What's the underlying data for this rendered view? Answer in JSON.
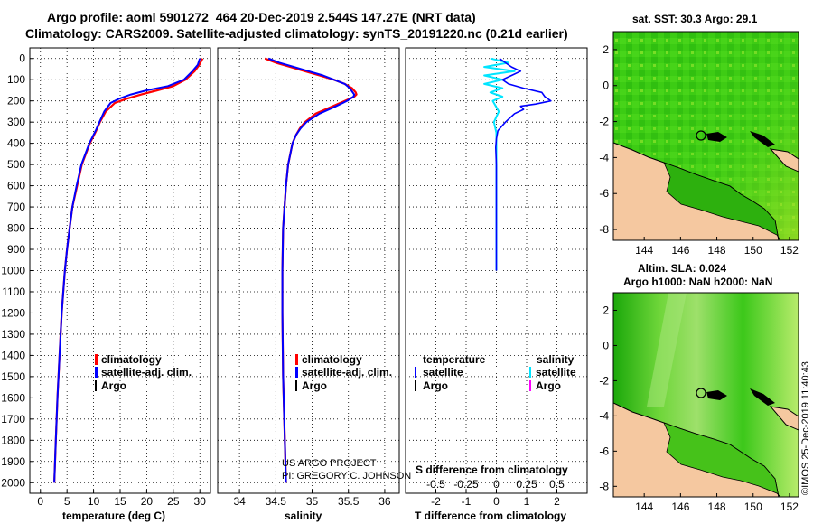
{
  "title": {
    "line1": "Argo profile: aoml 5901272_464 20-Dec-2019 2.544S 147.27E (NRT data)",
    "line2": "Climatology: CARS2009. Satellite-adjusted climatology: synTS_20191220.nc (0.21d earlier)"
  },
  "depth_axis": {
    "ticks": [
      "0",
      "100",
      "200",
      "300",
      "400",
      "500",
      "600",
      "700",
      "800",
      "900",
      "1000",
      "1100",
      "1200",
      "1300",
      "1400",
      "1500",
      "1600",
      "1700",
      "1800",
      "1900",
      "2000"
    ]
  },
  "credits": {
    "project": "US ARGO PROJECT",
    "pi": "PI: GREGORY C. JOHNSON",
    "stamp": "©IMOS 25-Dec-2019 11:40:43"
  },
  "colors": {
    "climatology": "#ff0000",
    "satellite": "#0000ff",
    "argo": "#000000",
    "sal_satellite": "#00e5ff",
    "sal_argo": "#ff00ff",
    "land": "#f5c8a0"
  },
  "chart_data": [
    {
      "type": "line",
      "id": "temperature",
      "xlabel": "temperature (deg C)",
      "ylabel": "depth",
      "xlim": [
        -2,
        32
      ],
      "ylim": [
        2050,
        0
      ],
      "xticks": [
        "0",
        "5",
        "10",
        "15",
        "20",
        "25",
        "30"
      ],
      "legend": {
        "position": "bottom-left",
        "entries": [
          "climatology",
          "satellite-adj. clim.",
          "Argo"
        ]
      },
      "depth": [
        0,
        30,
        60,
        100,
        130,
        150,
        170,
        190,
        210,
        250,
        300,
        340,
        400,
        500,
        600,
        700,
        800,
        900,
        1000,
        1200,
        1400,
        1600,
        1800,
        2000
      ],
      "series": [
        {
          "name": "climatology",
          "values": [
            30.5,
            29.9,
            29.0,
            27.3,
            25.0,
            22.0,
            19.0,
            16.2,
            14.0,
            12.3,
            11.2,
            10.5,
            9.3,
            7.8,
            6.9,
            6.0,
            5.5,
            5.0,
            4.6,
            4.0,
            3.6,
            3.2,
            2.9,
            2.6
          ]
        },
        {
          "name": "satellite-adj. clim.",
          "values": [
            30.0,
            29.6,
            28.6,
            27.0,
            24.0,
            20.0,
            17.0,
            14.8,
            13.2,
            12.0,
            11.1,
            10.4,
            9.2,
            7.7,
            6.8,
            6.0,
            5.5,
            5.0,
            4.6,
            4.0,
            3.6,
            3.2,
            2.9,
            2.6
          ]
        }
      ]
    },
    {
      "type": "line",
      "id": "salinity",
      "xlabel": "salinity",
      "ylabel": "depth",
      "xlim": [
        33.7,
        36.2
      ],
      "ylim": [
        2050,
        0
      ],
      "xticks": [
        "34",
        "34.5",
        "35",
        "35.5",
        "36"
      ],
      "legend": {
        "position": "bottom-right",
        "entries": [
          "climatology",
          "satellite-adj. clim.",
          "Argo"
        ]
      },
      "depth": [
        0,
        20,
        40,
        60,
        80,
        100,
        120,
        140,
        160,
        170,
        180,
        200,
        230,
        260,
        300,
        330,
        360,
        400,
        450,
        500,
        600,
        800,
        1000,
        1200,
        1500,
        2000
      ],
      "series": [
        {
          "name": "climatology",
          "values": [
            34.35,
            34.5,
            34.7,
            34.9,
            35.1,
            35.3,
            35.45,
            35.55,
            35.6,
            35.61,
            35.58,
            35.45,
            35.25,
            35.05,
            34.9,
            34.83,
            34.78,
            34.73,
            34.7,
            34.67,
            34.64,
            34.6,
            34.59,
            34.59,
            34.6,
            34.64
          ]
        },
        {
          "name": "satellite-adj. clim.",
          "values": [
            34.4,
            34.55,
            34.75,
            34.95,
            35.15,
            35.3,
            35.45,
            35.52,
            35.56,
            35.58,
            35.57,
            35.48,
            35.3,
            35.1,
            34.92,
            34.84,
            34.78,
            34.73,
            34.7,
            34.67,
            34.64,
            34.6,
            34.59,
            34.59,
            34.6,
            34.64
          ]
        }
      ]
    },
    {
      "type": "line",
      "id": "difference",
      "xlabel_bottom": "T difference from climatology",
      "xlabel_top": "S difference from climatology",
      "xlim": [
        -3,
        3
      ],
      "ylim": [
        2050,
        0
      ],
      "xticks_bottom": [
        "-2",
        "-1",
        "0",
        "1",
        "2"
      ],
      "xticks_top": [
        "-0.5",
        "-0.25",
        "0",
        "0.25",
        "0.5"
      ],
      "legend": {
        "position": "bottom",
        "temperature_header": "temperature",
        "salinity_header": "salinity",
        "entries": [
          "satellite",
          "Argo"
        ]
      },
      "series": [
        {
          "name": "temperature satellite",
          "depth": [
            0,
            20,
            40,
            60,
            80,
            100,
            120,
            140,
            160,
            180,
            200,
            215,
            225,
            240,
            260,
            300,
            340,
            380,
            420,
            500,
            600,
            700,
            800,
            900,
            1000
          ],
          "values": [
            0.1,
            0.3,
            0.5,
            0.8,
            0.5,
            0.2,
            0.4,
            0.9,
            1.5,
            1.6,
            1.8,
            1.3,
            0.8,
            0.9,
            0.6,
            0.3,
            0.05,
            0.0,
            -0.02,
            0.0,
            0.0,
            0.0,
            0.0,
            0.0,
            0.0
          ]
        },
        {
          "name": "salinity satellite",
          "depth": [
            0,
            20,
            40,
            60,
            80,
            100,
            120,
            140,
            160,
            180,
            200,
            250,
            300,
            350,
            400,
            500,
            600,
            700,
            800,
            900,
            1000
          ],
          "values": [
            -0.05,
            0.1,
            -0.1,
            0.15,
            -0.1,
            0.05,
            -0.1,
            0.05,
            -0.05,
            0.05,
            -0.03,
            0.02,
            -0.02,
            0.0,
            0.0,
            0.0,
            0.0,
            0.0,
            0.0,
            0.0,
            0.0
          ]
        }
      ]
    },
    {
      "type": "heatmap",
      "id": "sst-map",
      "title": "sat. SST: 30.3 Argo: 29.1",
      "xlim": [
        142.3,
        152.5
      ],
      "ylim": [
        -8.6,
        3.0
      ],
      "xticks": [
        "144",
        "146",
        "148",
        "150",
        "152"
      ],
      "yticks": [
        "2",
        "0",
        "-2",
        "-4",
        "-6",
        "-8"
      ],
      "marker": {
        "lon": 147.27,
        "lat": -2.544
      }
    },
    {
      "type": "heatmap",
      "id": "sla-map",
      "title_line1": "Altim. SLA: 0.024",
      "title_line2": "Argo h1000: NaN h2000: NaN",
      "xlim": [
        142.3,
        152.5
      ],
      "ylim": [
        -8.6,
        3.0
      ],
      "xticks": [
        "144",
        "146",
        "148",
        "150",
        "152"
      ],
      "yticks": [
        "2",
        "0",
        "-2",
        "-4",
        "-6",
        "-8"
      ],
      "marker": {
        "lon": 147.27,
        "lat": -2.544
      }
    }
  ]
}
